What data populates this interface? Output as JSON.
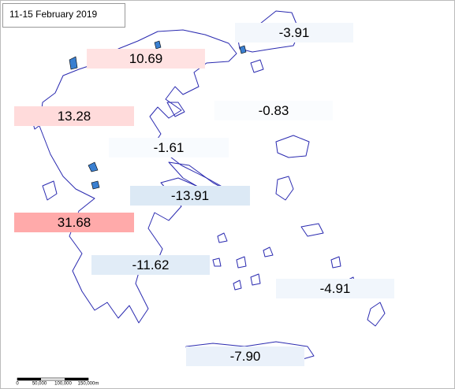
{
  "map_data": {
    "title": "11-15 February 2019",
    "values": [
      -3.91,
      10.69,
      13.28,
      -0.83,
      -1.61,
      -13.91,
      31.68,
      -11.62,
      -4.91,
      -7.9
    ],
    "value_labels": [
      "-3.91",
      "10.69",
      "13.28",
      "-0.83",
      "-1.61",
      "-13.91",
      "31.68",
      "-11.62",
      "-4.91",
      "-7.90"
    ],
    "scale_labels": [
      "0",
      "50,000",
      "100,000",
      "150,000m"
    ]
  }
}
